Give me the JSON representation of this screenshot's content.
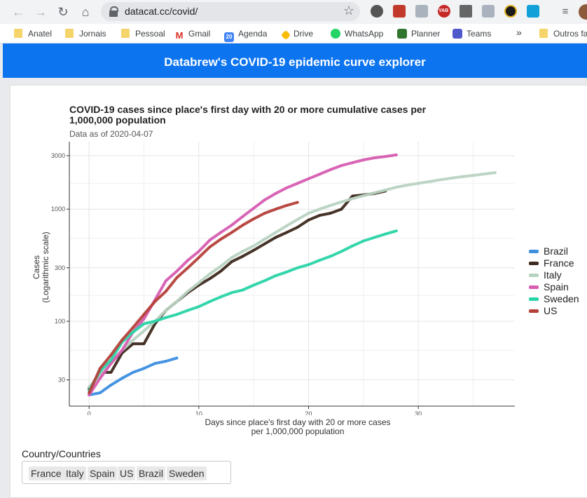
{
  "browser": {
    "url": "datacat.cc/covid/",
    "bookmarks": [
      "Anatel",
      "Jornais",
      "Pessoal",
      "Gmail",
      "Agenda",
      "Drive",
      "WhatsApp",
      "Planner",
      "Teams",
      "»",
      "Outros fa"
    ],
    "extension_badge": "YAB",
    "agenda_number": "20"
  },
  "app": {
    "header_title": "Databrew's COVID-19 epidemic curve explorer"
  },
  "chart_data": {
    "type": "line",
    "title": "COVID-19 cases since place's first day with 20 or more cumulative cases per 1,000,000 population",
    "subtitle": "Data as of 2020-04-07",
    "xlabel": [
      "Days since place's first day with 20 or more cases",
      "per 1,000,000 population"
    ],
    "ylabel": [
      "Cases",
      "(Logarithmic scale)"
    ],
    "y_scale": "log",
    "xlim": [
      -1.8,
      38.8
    ],
    "ylim": [
      17.5,
      4000
    ],
    "x_ticks": [
      0,
      10,
      20,
      30
    ],
    "y_ticks": [
      30,
      100,
      300,
      1000,
      3000
    ],
    "grid": true,
    "legend_position": "right",
    "series": [
      {
        "name": "Brazil",
        "color": "#3d8fe0",
        "x": [
          0,
          1,
          2,
          3,
          4,
          5,
          6,
          7,
          8
        ],
        "y": [
          22,
          23,
          27,
          31,
          35,
          38,
          42,
          44,
          47
        ]
      },
      {
        "name": "France",
        "color": "#3e2a1f",
        "x": [
          0,
          1,
          2,
          3,
          4,
          5,
          6,
          7,
          8,
          9,
          10,
          11,
          12,
          13,
          14,
          15,
          16,
          17,
          18,
          19,
          20,
          21,
          22,
          23,
          24,
          25,
          26,
          27
        ],
        "y": [
          25,
          35,
          35,
          52,
          63,
          63,
          95,
          125,
          150,
          180,
          210,
          240,
          280,
          340,
          380,
          430,
          490,
          560,
          620,
          690,
          800,
          880,
          920,
          1000,
          1310,
          1340,
          1380,
          1450
        ]
      },
      {
        "name": "Italy",
        "color": "#b9d3c2",
        "x": [
          0,
          1,
          2,
          3,
          4,
          5,
          6,
          7,
          8,
          9,
          10,
          11,
          12,
          13,
          14,
          15,
          16,
          17,
          18,
          19,
          20,
          21,
          22,
          23,
          24,
          25,
          26,
          27,
          28,
          29,
          30,
          31,
          32,
          33,
          34,
          35,
          36,
          37
        ],
        "y": [
          26,
          33,
          43,
          55,
          68,
          82,
          100,
          125,
          150,
          185,
          220,
          265,
          310,
          370,
          420,
          470,
          540,
          620,
          710,
          810,
          920,
          1000,
          1080,
          1160,
          1240,
          1320,
          1400,
          1480,
          1570,
          1640,
          1700,
          1760,
          1830,
          1890,
          1950,
          2000,
          2060,
          2120
        ]
      },
      {
        "name": "Spain",
        "color": "#d65db1",
        "x": [
          0,
          1,
          2,
          3,
          4,
          5,
          6,
          7,
          8,
          9,
          10,
          11,
          12,
          13,
          14,
          15,
          16,
          17,
          18,
          19,
          20,
          21,
          22,
          23,
          24,
          25,
          26,
          27,
          28
        ],
        "y": [
          22,
          31,
          42,
          55,
          80,
          105,
          155,
          230,
          280,
          350,
          420,
          530,
          620,
          720,
          860,
          1020,
          1210,
          1380,
          1550,
          1700,
          1870,
          2050,
          2250,
          2450,
          2600,
          2750,
          2870,
          2950,
          3050
        ]
      },
      {
        "name": "Sweden",
        "color": "#2bd4a8",
        "x": [
          0,
          1,
          2,
          3,
          4,
          5,
          6,
          7,
          8,
          9,
          10,
          11,
          12,
          13,
          14,
          15,
          16,
          17,
          18,
          19,
          20,
          21,
          22,
          23,
          24,
          25,
          26,
          27,
          28
        ],
        "y": [
          24,
          36,
          45,
          65,
          80,
          95,
          100,
          108,
          115,
          125,
          135,
          150,
          165,
          180,
          190,
          210,
          230,
          255,
          275,
          300,
          320,
          350,
          380,
          420,
          470,
          520,
          560,
          600,
          640
        ]
      },
      {
        "name": "US",
        "color": "#b5403a",
        "x": [
          0,
          1,
          2,
          3,
          4,
          5,
          6,
          7,
          8,
          9,
          10,
          11,
          12,
          13,
          14,
          15,
          16,
          17,
          18,
          19
        ],
        "y": [
          23,
          38,
          50,
          68,
          88,
          115,
          150,
          185,
          245,
          300,
          370,
          460,
          540,
          620,
          720,
          820,
          920,
          1000,
          1080,
          1150
        ]
      }
    ]
  },
  "controls": {
    "country_label": "Country/Countries",
    "selected": [
      "France",
      "Italy",
      "Spain",
      "US",
      "Brazil",
      "Sweden"
    ]
  }
}
